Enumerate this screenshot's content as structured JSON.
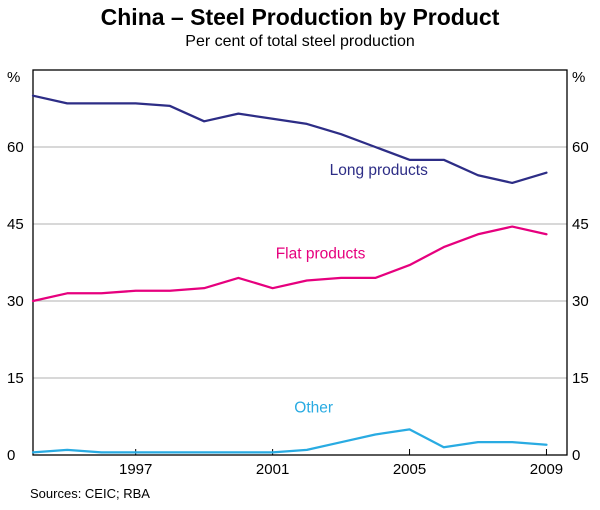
{
  "header": {
    "title": "China – Steel Production by Product",
    "subtitle": "Per cent of total steel production"
  },
  "footer": {
    "sources": "Sources: CEIC; RBA"
  },
  "chart_data": {
    "type": "line",
    "title": "China – Steel Production by Product",
    "subtitle": "Per cent of total steel production",
    "x": [
      1994,
      1995,
      1996,
      1997,
      1998,
      1999,
      2000,
      2001,
      2002,
      2003,
      2004,
      2005,
      2006,
      2007,
      2008,
      2009
    ],
    "series": [
      {
        "name": "Long products",
        "color": "#2d2d86",
        "values": [
          70,
          68.5,
          68.5,
          68.5,
          68,
          65,
          66.5,
          65.5,
          64.5,
          62.5,
          60,
          57.5,
          57.5,
          54.5,
          53,
          55
        ],
        "label_anchor": {
          "x": 2004.1,
          "y": 54.5
        }
      },
      {
        "name": "Flat products",
        "color": "#e6007e",
        "values": [
          30,
          31.5,
          31.5,
          32,
          32,
          32.5,
          34.5,
          32.5,
          34,
          34.5,
          34.5,
          37,
          40.5,
          43,
          44.5,
          43
        ],
        "label_anchor": {
          "x": 2002.4,
          "y": 38.3
        }
      },
      {
        "name": "Other",
        "color": "#29abe2",
        "values": [
          0.5,
          1,
          0.5,
          0.5,
          0.5,
          0.5,
          0.5,
          0.5,
          1,
          2.5,
          4,
          5,
          1.5,
          2.5,
          2.5,
          2
        ],
        "label_anchor": {
          "x": 2002.2,
          "y": 8.3
        }
      }
    ],
    "xlabel": "",
    "ylabel": "%",
    "y_unit": "%",
    "ylim": [
      0,
      75
    ],
    "yticks": [
      0,
      15,
      30,
      45,
      60
    ],
    "xticks": [
      1997,
      2001,
      2005,
      2009
    ],
    "xtick_labels": [
      "1997",
      "2001",
      "2005",
      "2009"
    ],
    "grid": true,
    "legend_position": "inline-labels",
    "source": "Sources: CEIC; RBA"
  }
}
